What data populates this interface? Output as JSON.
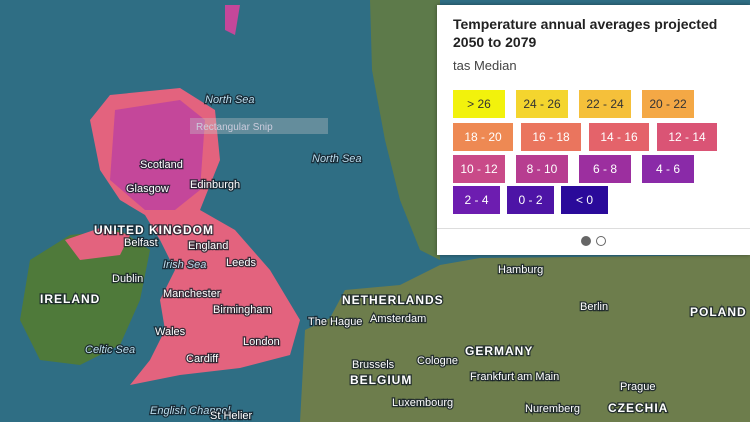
{
  "legend": {
    "title": "Temperature annual averages projected 2050 to 2079",
    "subtitle": "tas Median",
    "items": [
      {
        "label": "> 26",
        "color": "#f2f20c"
      },
      {
        "label": "24 - 26",
        "color": "#f4d52e"
      },
      {
        "label": "22 - 24",
        "color": "#f5c03a"
      },
      {
        "label": "20 - 22",
        "color": "#f4a845"
      },
      {
        "label": "18 - 20",
        "color": "#ee8953"
      },
      {
        "label": "16 - 18",
        "color": "#ea755e"
      },
      {
        "label": "14 - 16",
        "color": "#e4636a"
      },
      {
        "label": "12 - 14",
        "color": "#da5475"
      },
      {
        "label": "10 - 12",
        "color": "#c94a88"
      },
      {
        "label": "8 - 10",
        "color": "#b73d90"
      },
      {
        "label": "6 - 8",
        "color": "#9c2f9f"
      },
      {
        "label": "4 - 6",
        "color": "#8a2aa8"
      },
      {
        "label": "2 - 4",
        "color": "#6d1db0"
      },
      {
        "label": "0 - 2",
        "color": "#4d14a6"
      },
      {
        "label": "< 0",
        "color": "#2a0a9a"
      }
    ]
  },
  "overlay": "Rectangular Snip",
  "map_labels": [
    "North Sea",
    "North Sea",
    "Scotland",
    "Glasgow",
    "Edinburgh",
    "UNITED KINGDOM",
    "Belfast",
    "England",
    "Leeds",
    "Irish Sea",
    "Dublin",
    "IRELAND",
    "Manchester",
    "Birmingham",
    "Wales",
    "London",
    "Cardiff",
    "Celtic Sea",
    "English Channel",
    "St Helier",
    "NETHERLANDS",
    "The Hague",
    "Amsterdam",
    "Hamburg",
    "Berlin",
    "POLAND",
    "GERMANY",
    "Brussels",
    "Cologne",
    "BELGIUM",
    "Frankfurt am Main",
    "Luxembourg",
    "Nuremberg",
    "Prague",
    "CZECHIA"
  ]
}
